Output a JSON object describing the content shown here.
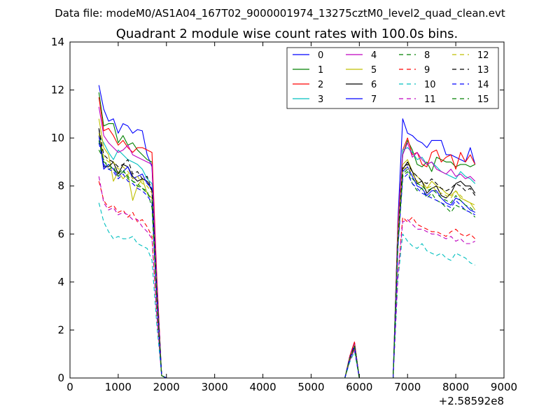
{
  "header": {
    "datafile_label": "Data file: modeM0/AS1A04_167T02_9000001974_13275cztM0_level2_quad_clean.evt"
  },
  "chart_data": {
    "type": "line",
    "title": "Quadrant 2 module wise count rates with 100.0s bins.",
    "xlabel": "",
    "ylabel": "",
    "x_offset_label": "+2.58592e8",
    "xlim": [
      0,
      9000
    ],
    "ylim": [
      0,
      14
    ],
    "x_ticks": [
      0,
      1000,
      2000,
      3000,
      4000,
      5000,
      6000,
      7000,
      8000,
      9000
    ],
    "y_ticks": [
      0,
      2,
      4,
      6,
      8,
      10,
      12,
      14
    ],
    "x_tick_labels": [
      "0",
      "1000",
      "2000",
      "3000",
      "4000",
      "5000",
      "6000",
      "7000",
      "8000",
      "9000"
    ],
    "y_tick_labels": [
      "0",
      "2",
      "4",
      "6",
      "8",
      "10",
      "12",
      "14"
    ],
    "grid": false,
    "legend_position": "top-right",
    "legend_columns": 4,
    "x": [
      600,
      700,
      800,
      900,
      1000,
      1100,
      1200,
      1300,
      1400,
      1500,
      1600,
      1700,
      1800,
      1900,
      2000,
      2100,
      2200,
      2300,
      2400,
      2500,
      2600,
      2700,
      2800,
      2900,
      3000,
      3100,
      3200,
      3300,
      3400,
      3500,
      3600,
      3700,
      3800,
      3900,
      4000,
      4100,
      4200,
      4300,
      4400,
      4500,
      4600,
      4700,
      4800,
      4900,
      5000,
      5100,
      5200,
      5300,
      5400,
      5500,
      5600,
      5700,
      5800,
      5900,
      6000,
      6100,
      6200,
      6300,
      6400,
      6500,
      6600,
      6700,
      6800,
      6900,
      7000,
      7100,
      7200,
      7300,
      7400,
      7500,
      7600,
      7700,
      7800,
      7900,
      8000,
      8100,
      8200,
      8300,
      8400
    ],
    "series": [
      {
        "name": "0",
        "color": "#0000ff",
        "dash": "solid",
        "active": [
          12.2,
          11.2,
          10.7,
          10.8,
          10.2,
          10.6,
          10.5,
          10.2,
          10.35,
          10.3,
          9.3,
          8.8
        ],
        "end": [
          10.9,
          10.8,
          10.2,
          10.1,
          9.9,
          9.8,
          9.6,
          9.9,
          9.9,
          9.9,
          9.3,
          9.3,
          9.2,
          9.1,
          9.0,
          9.6,
          8.9
        ],
        "blip": 1.5
      },
      {
        "name": "1",
        "color": "#008000",
        "dash": "solid",
        "active": [
          11.9,
          10.5,
          10.6,
          10.6,
          9.8,
          10.1,
          9.7,
          9.8,
          9.5,
          9.3,
          9.1,
          9.0
        ],
        "end": [
          10.5,
          9.3,
          9.9,
          9.5,
          8.9,
          8.8,
          9.0,
          8.6,
          9.2,
          9.1,
          9.0,
          9.0,
          8.8,
          8.9,
          8.9,
          8.8,
          8.9
        ],
        "blip": 1.45
      },
      {
        "name": "2",
        "color": "#ff0000",
        "dash": "solid",
        "active": [
          11.7,
          10.3,
          10.4,
          10.1,
          9.7,
          9.9,
          9.6,
          9.4,
          9.6,
          9.6,
          9.5,
          9.4
        ],
        "end": [
          10.6,
          9.5,
          10.0,
          9.3,
          9.4,
          8.9,
          8.8,
          9.4,
          9.5,
          9.0,
          9.2,
          9.3,
          8.7,
          9.4,
          9.0,
          9.3,
          8.9
        ],
        "blip": 1.5
      },
      {
        "name": "3",
        "color": "#00bfbf",
        "dash": "solid",
        "active": [
          10.1,
          9.8,
          9.4,
          9.1,
          9.5,
          9.3,
          9.1,
          9.0,
          8.9,
          8.7,
          8.3,
          8.1
        ],
        "end": [
          10.0,
          9.5,
          9.6,
          9.4,
          9.1,
          9.2,
          8.9,
          9.0,
          8.8,
          8.6,
          8.5,
          8.4,
          8.3,
          8.6,
          8.4,
          8.3,
          8.1
        ],
        "blip": 1.4
      },
      {
        "name": "4",
        "color": "#bf00bf",
        "dash": "solid",
        "active": [
          11.3,
          10.1,
          9.8,
          9.6,
          9.4,
          9.5,
          9.7,
          9.3,
          9.2,
          9.1,
          9.0,
          8.9
        ],
        "end": [
          10.3,
          9.3,
          9.8,
          9.2,
          9.4,
          9.1,
          8.9,
          9.0,
          8.7,
          8.6,
          8.5,
          8.7,
          8.4,
          8.5,
          8.3,
          8.4,
          8.2
        ],
        "blip": 1.4
      },
      {
        "name": "5",
        "color": "#bfbf00",
        "dash": "solid",
        "active": [
          10.8,
          9.6,
          9.3,
          8.2,
          8.6,
          8.3,
          8.5,
          7.4,
          8.0,
          8.3,
          7.7,
          7.5
        ],
        "end": [
          9.8,
          8.9,
          9.1,
          8.6,
          8.4,
          8.2,
          7.9,
          8.2,
          8.0,
          7.9,
          7.7,
          7.6,
          7.8,
          7.5,
          7.4,
          7.3,
          7.0
        ],
        "blip": 1.3
      },
      {
        "name": "6",
        "color": "#000000",
        "dash": "solid",
        "active": [
          10.4,
          8.8,
          8.8,
          9.0,
          8.5,
          8.9,
          8.8,
          8.4,
          8.2,
          8.3,
          8.2,
          7.8
        ],
        "end": [
          9.4,
          8.7,
          9.0,
          8.6,
          8.1,
          8.2,
          7.7,
          7.9,
          8.0,
          7.6,
          7.5,
          7.7,
          8.1,
          8.2,
          8.0,
          8.0,
          7.7
        ],
        "blip": 1.3
      },
      {
        "name": "7",
        "color": "#0000ff",
        "dash": "solid",
        "active": [
          10.1,
          8.7,
          8.9,
          8.7,
          8.4,
          8.6,
          8.8,
          8.3,
          8.4,
          8.5,
          8.1,
          7.9
        ],
        "end": [
          9.1,
          8.6,
          8.8,
          8.4,
          8.0,
          7.9,
          7.6,
          7.8,
          7.8,
          7.5,
          7.3,
          7.2,
          7.5,
          7.4,
          7.2,
          7.0,
          6.9
        ],
        "blip": 1.3
      },
      {
        "name": "8",
        "color": "#008000",
        "dash": "dashed",
        "active": [
          9.5,
          9.1,
          8.7,
          8.8,
          8.4,
          8.6,
          8.4,
          8.2,
          8.0,
          7.9,
          7.8,
          7.1
        ],
        "end": [
          9.2,
          8.4,
          8.6,
          8.1,
          7.8,
          7.9,
          7.5,
          7.7,
          7.4,
          7.3,
          7.1,
          6.9,
          7.2,
          7.1,
          7.0,
          6.9,
          6.7
        ],
        "blip": 1.3
      },
      {
        "name": "9",
        "color": "#ff0000",
        "dash": "dashed",
        "active": [
          8.2,
          7.4,
          7.1,
          7.2,
          6.9,
          7.0,
          6.7,
          6.9,
          6.5,
          6.6,
          6.3,
          5.9
        ],
        "end": [
          7.0,
          6.7,
          6.5,
          6.7,
          6.4,
          6.3,
          6.2,
          6.1,
          6.1,
          6.0,
          5.9,
          6.1,
          6.2,
          6.0,
          5.9,
          6.0,
          5.8
        ],
        "blip": 1.2
      },
      {
        "name": "10",
        "color": "#00bfbf",
        "dash": "dashed",
        "active": [
          7.3,
          6.5,
          6.1,
          5.8,
          5.9,
          5.8,
          5.8,
          5.9,
          5.6,
          5.5,
          5.4,
          4.9
        ],
        "end": [
          6.8,
          6.0,
          5.7,
          5.5,
          5.4,
          5.6,
          5.3,
          5.2,
          5.1,
          5.2,
          5.0,
          4.9,
          5.2,
          5.1,
          5.0,
          4.8,
          4.7
        ],
        "blip": 1.1
      },
      {
        "name": "11",
        "color": "#bf00bf",
        "dash": "dashed",
        "active": [
          8.4,
          7.3,
          7.0,
          7.1,
          6.8,
          6.9,
          6.8,
          6.6,
          6.6,
          6.3,
          6.1,
          5.8
        ],
        "end": [
          7.1,
          6.5,
          6.6,
          6.4,
          6.2,
          6.2,
          6.1,
          6.0,
          6.0,
          5.9,
          5.8,
          5.9,
          5.7,
          5.8,
          5.6,
          5.6,
          5.7
        ],
        "blip": 1.2
      },
      {
        "name": "12",
        "color": "#bfbf00",
        "dash": "dashed",
        "active": [
          10.2,
          9.2,
          9.0,
          9.0,
          8.7,
          8.8,
          8.6,
          8.3,
          8.4,
          8.1,
          8.0,
          7.7
        ],
        "end": [
          9.6,
          8.7,
          8.8,
          8.5,
          8.2,
          8.0,
          7.9,
          8.0,
          7.8,
          7.7,
          7.6,
          7.5,
          7.8,
          7.6,
          7.4,
          7.3,
          7.2
        ],
        "blip": 1.35
      },
      {
        "name": "13",
        "color": "#000000",
        "dash": "dashed",
        "active": [
          10.4,
          9.3,
          9.1,
          9.0,
          8.8,
          8.9,
          9.1,
          8.5,
          8.6,
          8.3,
          8.4,
          7.8
        ],
        "end": [
          9.5,
          8.8,
          8.9,
          8.6,
          8.4,
          8.2,
          8.1,
          8.3,
          8.1,
          7.9,
          7.8,
          7.9,
          8.1,
          8.0,
          7.8,
          7.9,
          7.6
        ],
        "blip": 1.35
      },
      {
        "name": "14",
        "color": "#0000ff",
        "dash": "dashed",
        "active": [
          9.8,
          8.9,
          8.7,
          8.6,
          8.3,
          8.5,
          8.2,
          8.1,
          7.9,
          7.8,
          7.6,
          7.3
        ],
        "end": [
          9.0,
          8.3,
          8.5,
          8.1,
          7.9,
          7.7,
          7.6,
          7.5,
          7.4,
          7.3,
          7.2,
          7.1,
          7.4,
          7.2,
          7.0,
          6.9,
          6.8
        ],
        "blip": 1.3
      },
      {
        "name": "15",
        "color": "#008000",
        "dash": "dashed",
        "active": [
          9.9,
          9.0,
          8.9,
          8.7,
          8.5,
          8.7,
          8.3,
          8.2,
          8.1,
          7.9,
          7.7,
          7.4
        ],
        "end": [
          9.3,
          8.5,
          8.7,
          8.3,
          8.1,
          8.0,
          7.8,
          7.9,
          7.7,
          7.5,
          7.4,
          7.3,
          7.6,
          7.4,
          7.2,
          7.1,
          6.9
        ],
        "blip": 1.3
      }
    ]
  }
}
